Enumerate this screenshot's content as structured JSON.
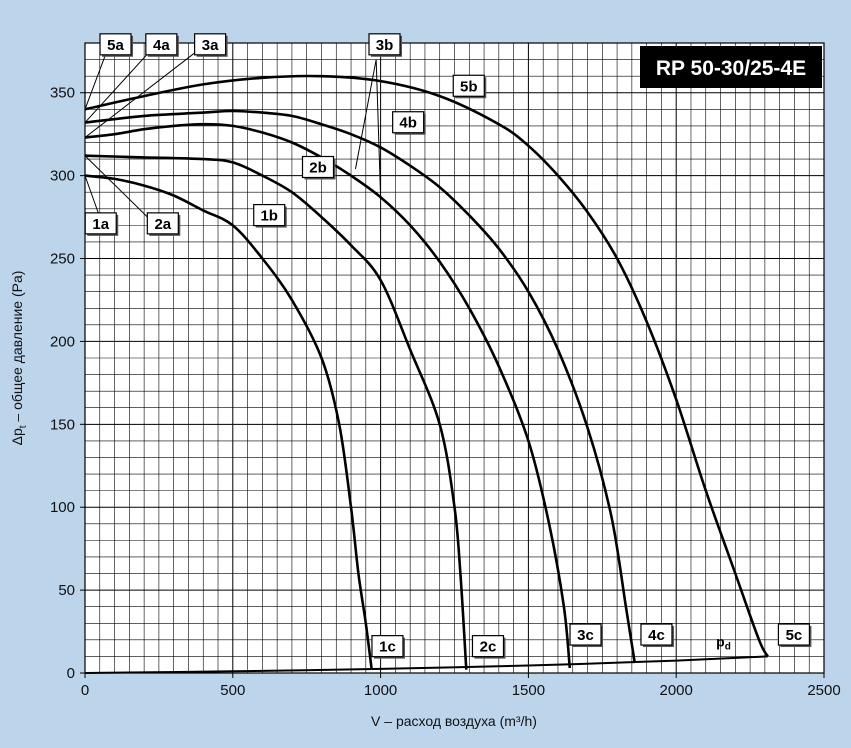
{
  "chart_data": {
    "type": "line",
    "title": "RP 50-30/25-4E",
    "xlabel": "V – расход воздуха (m³/h)",
    "ylabel": "Δpt – общее давление (Pa)",
    "ylabel_parts": {
      "prefix": "Δp",
      "sub": "t",
      "suffix": " – общее давление (Pa)"
    },
    "xlim": [
      0,
      2500
    ],
    "ylim": [
      0,
      380
    ],
    "xticks": [
      0,
      500,
      1000,
      1500,
      2000,
      2500
    ],
    "yticks": [
      0,
      50,
      100,
      150,
      200,
      250,
      300,
      350
    ],
    "grid": true,
    "series": [
      {
        "name": "1",
        "points": [
          [
            0,
            300
          ],
          [
            100,
            298
          ],
          [
            200,
            294
          ],
          [
            300,
            288
          ],
          [
            400,
            279
          ],
          [
            500,
            270
          ],
          [
            600,
            250
          ],
          [
            700,
            225
          ],
          [
            800,
            190
          ],
          [
            860,
            150
          ],
          [
            900,
            100
          ],
          [
            925,
            60
          ],
          [
            950,
            30
          ],
          [
            970,
            2
          ]
        ]
      },
      {
        "name": "2",
        "points": [
          [
            0,
            312
          ],
          [
            200,
            311
          ],
          [
            400,
            310
          ],
          [
            500,
            308
          ],
          [
            600,
            300
          ],
          [
            700,
            290
          ],
          [
            800,
            275
          ],
          [
            900,
            258
          ],
          [
            1000,
            237
          ],
          [
            1100,
            195
          ],
          [
            1200,
            150
          ],
          [
            1250,
            100
          ],
          [
            1270,
            60
          ],
          [
            1290,
            2
          ]
        ]
      },
      {
        "name": "3",
        "points": [
          [
            0,
            323
          ],
          [
            100,
            325
          ],
          [
            200,
            328
          ],
          [
            300,
            330
          ],
          [
            400,
            331
          ],
          [
            500,
            330
          ],
          [
            600,
            326
          ],
          [
            700,
            320
          ],
          [
            800,
            311
          ],
          [
            900,
            300
          ],
          [
            1000,
            287
          ],
          [
            1100,
            270
          ],
          [
            1200,
            248
          ],
          [
            1300,
            220
          ],
          [
            1400,
            185
          ],
          [
            1500,
            140
          ],
          [
            1570,
            90
          ],
          [
            1620,
            40
          ],
          [
            1640,
            3
          ]
        ]
      },
      {
        "name": "4",
        "points": [
          [
            0,
            332
          ],
          [
            200,
            336
          ],
          [
            400,
            338
          ],
          [
            500,
            339
          ],
          [
            600,
            338
          ],
          [
            700,
            336
          ],
          [
            800,
            331
          ],
          [
            900,
            325
          ],
          [
            1000,
            317
          ],
          [
            1100,
            306
          ],
          [
            1200,
            293
          ],
          [
            1300,
            276
          ],
          [
            1400,
            256
          ],
          [
            1500,
            230
          ],
          [
            1600,
            195
          ],
          [
            1700,
            148
          ],
          [
            1780,
            95
          ],
          [
            1830,
            40
          ],
          [
            1860,
            6
          ]
        ]
      },
      {
        "name": "5",
        "points": [
          [
            0,
            340
          ],
          [
            200,
            348
          ],
          [
            400,
            355
          ],
          [
            600,
            359
          ],
          [
            800,
            360
          ],
          [
            1000,
            357
          ],
          [
            1200,
            348
          ],
          [
            1400,
            331
          ],
          [
            1500,
            318
          ],
          [
            1600,
            300
          ],
          [
            1700,
            278
          ],
          [
            1800,
            250
          ],
          [
            1900,
            212
          ],
          [
            2000,
            165
          ],
          [
            2100,
            110
          ],
          [
            2200,
            60
          ],
          [
            2280,
            20
          ],
          [
            2310,
            10
          ]
        ]
      },
      {
        "name": "pd",
        "points": [
          [
            0,
            0
          ],
          [
            500,
            1
          ],
          [
            1000,
            2.5
          ],
          [
            1500,
            4.5
          ],
          [
            2000,
            7.5
          ],
          [
            2310,
            10
          ]
        ]
      }
    ],
    "curve_labels": [
      {
        "text": "1a",
        "x": 60,
        "y": 270
      },
      {
        "text": "2a",
        "x": 270,
        "y": 270
      },
      {
        "text": "3a",
        "x": 430,
        "y": 378
      },
      {
        "text": "4a",
        "x": 265,
        "y": 378
      },
      {
        "text": "5a",
        "x": 110,
        "y": 378
      },
      {
        "text": "1b",
        "x": 630,
        "y": 275
      },
      {
        "text": "2b",
        "x": 795,
        "y": 304
      },
      {
        "text": "3b",
        "x": 1020,
        "y": 378
      },
      {
        "text": "4b",
        "x": 1100,
        "y": 331
      },
      {
        "text": "5b",
        "x": 1305,
        "y": 353
      },
      {
        "text": "1c",
        "x": 1030,
        "y": 15
      },
      {
        "text": "2c",
        "x": 1370,
        "y": 15
      },
      {
        "text": "3c",
        "x": 1700,
        "y": 22
      },
      {
        "text": "4c",
        "x": 1940,
        "y": 22
      },
      {
        "text": "5c",
        "x": 2405,
        "y": 22
      }
    ],
    "annotation": {
      "text": "p",
      "sub": "d",
      "x": 2160,
      "y": 16
    },
    "leaders": [
      {
        "from": [
          0,
          300
        ],
        "to": [
          60,
          270
        ]
      },
      {
        "from": [
          0,
          312
        ],
        "to": [
          240,
          270
        ]
      },
      {
        "from": [
          0,
          323
        ],
        "to": [
          400,
          378
        ]
      },
      {
        "from": [
          0,
          332
        ],
        "to": [
          235,
          378
        ]
      },
      {
        "from": [
          0,
          340
        ],
        "to": [
          80,
          378
        ]
      },
      {
        "from": [
          915,
          304
        ],
        "to": [
          985,
          370
        ]
      },
      {
        "from": [
          1000,
          287
        ],
        "to": [
          985,
          370
        ]
      }
    ]
  }
}
